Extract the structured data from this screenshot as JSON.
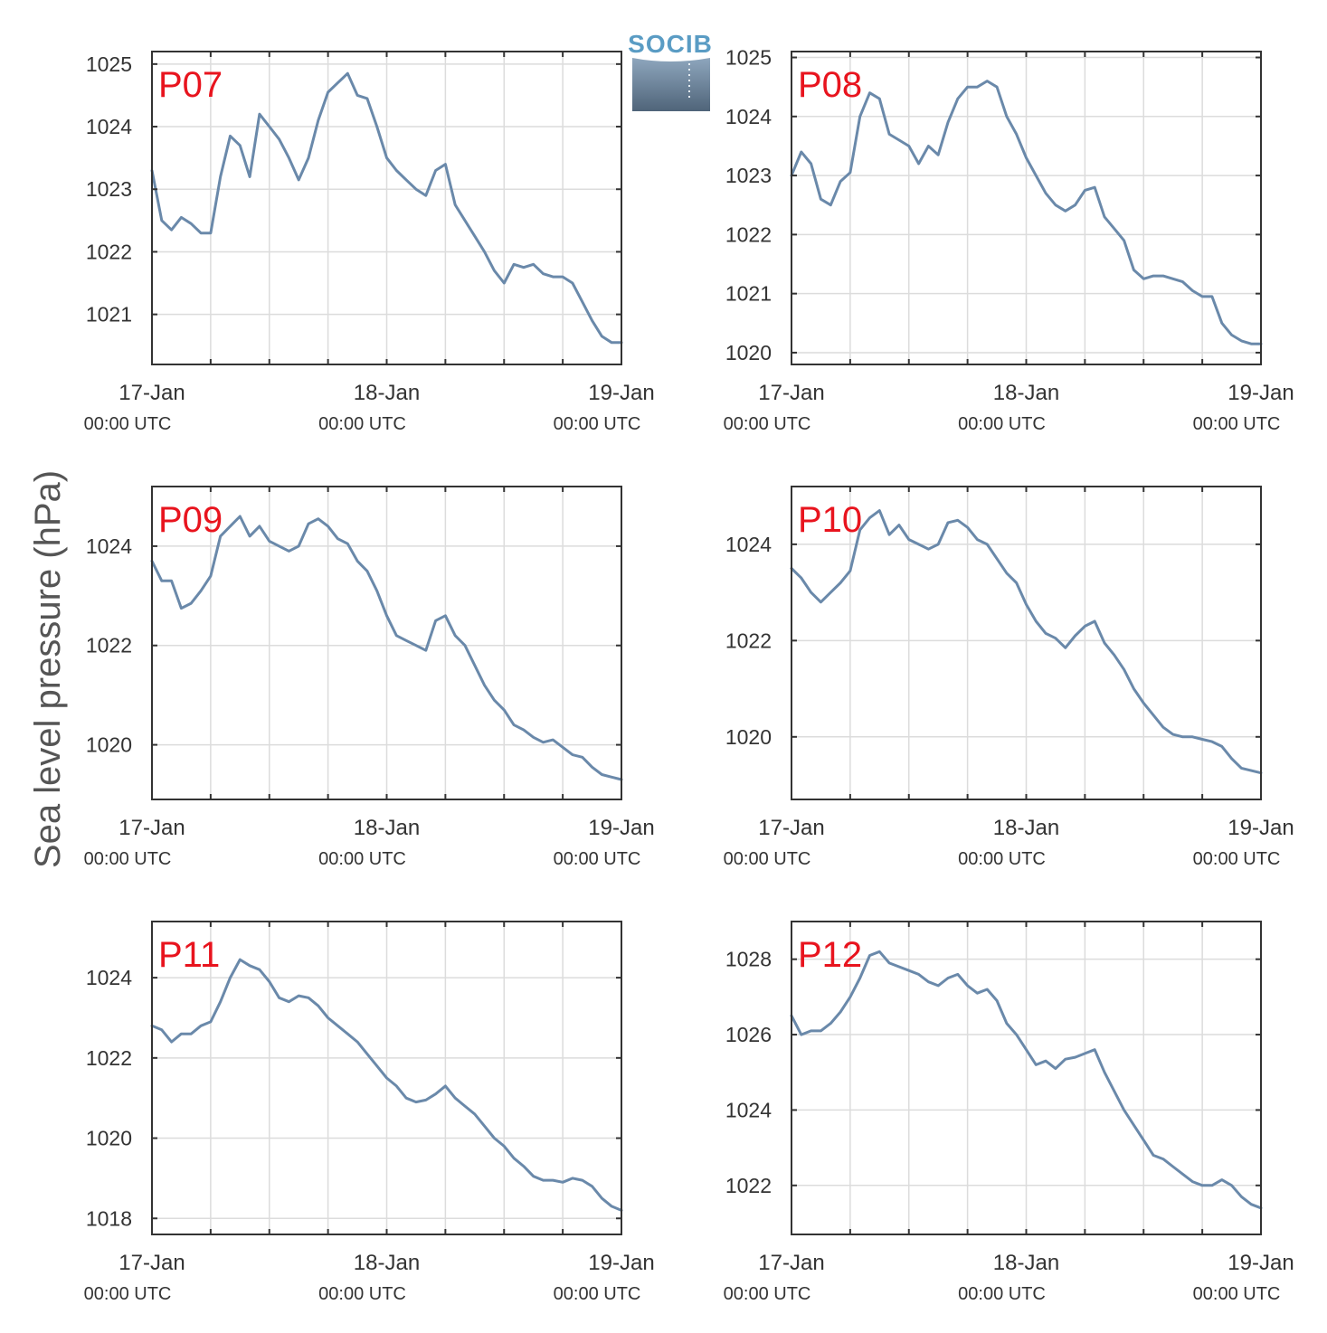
{
  "logo": {
    "text": "SOCIB"
  },
  "figure": {
    "ylabel": "Sea level pressure (hPa)",
    "line_color": "#6a89aa"
  },
  "x_ticks": [
    {
      "pos": 0,
      "date": "17-Jan",
      "time": "00:00 UTC"
    },
    {
      "pos": 24,
      "date": "18-Jan",
      "time": "00:00 UTC"
    },
    {
      "pos": 48,
      "date": "19-Jan",
      "time": "00:00 UTC"
    }
  ],
  "chart_data": [
    {
      "type": "line",
      "label": "P07",
      "x_unit": "hours since 17-Jan 00:00 UTC",
      "xlim": [
        0,
        48
      ],
      "ylim": [
        1020.2,
        1025.2
      ],
      "yticks": [
        1021,
        1022,
        1023,
        1024,
        1025
      ],
      "x": [
        0,
        1,
        2,
        3,
        4,
        5,
        6,
        7,
        8,
        9,
        10,
        11,
        12,
        13,
        14,
        15,
        16,
        17,
        18,
        19,
        20,
        21,
        22,
        23,
        24,
        25,
        26,
        27,
        28,
        29,
        30,
        31,
        32,
        33,
        34,
        35,
        36,
        37,
        38,
        39,
        40,
        41,
        42,
        43,
        44,
        45,
        46,
        47,
        48
      ],
      "y": [
        1023.3,
        1022.5,
        1022.35,
        1022.55,
        1022.45,
        1022.3,
        1022.3,
        1023.2,
        1023.85,
        1023.7,
        1023.2,
        1024.2,
        1024.0,
        1023.8,
        1023.5,
        1023.15,
        1023.5,
        1024.1,
        1024.55,
        1024.7,
        1024.85,
        1024.5,
        1024.45,
        1024.0,
        1023.5,
        1023.3,
        1023.15,
        1023.0,
        1022.9,
        1023.3,
        1023.4,
        1022.75,
        1022.5,
        1022.25,
        1022.0,
        1021.7,
        1021.5,
        1021.8,
        1021.75,
        1021.8,
        1021.65,
        1021.6,
        1021.6,
        1021.5,
        1021.2,
        1020.9,
        1020.65,
        1020.55,
        1020.55
      ]
    },
    {
      "type": "line",
      "label": "P08",
      "x_unit": "hours since 17-Jan 00:00 UTC",
      "xlim": [
        0,
        48
      ],
      "ylim": [
        1019.8,
        1025.1
      ],
      "yticks": [
        1020,
        1021,
        1022,
        1023,
        1024,
        1025
      ],
      "x": [
        0,
        1,
        2,
        3,
        4,
        5,
        6,
        7,
        8,
        9,
        10,
        11,
        12,
        13,
        14,
        15,
        16,
        17,
        18,
        19,
        20,
        21,
        22,
        23,
        24,
        25,
        26,
        27,
        28,
        29,
        30,
        31,
        32,
        33,
        34,
        35,
        36,
        37,
        38,
        39,
        40,
        41,
        42,
        43,
        44,
        45,
        46,
        47,
        48
      ],
      "y": [
        1023.0,
        1023.4,
        1023.2,
        1022.6,
        1022.5,
        1022.9,
        1023.05,
        1024.0,
        1024.4,
        1024.3,
        1023.7,
        1023.6,
        1023.5,
        1023.2,
        1023.5,
        1023.35,
        1023.9,
        1024.3,
        1024.5,
        1024.5,
        1024.6,
        1024.5,
        1024.0,
        1023.7,
        1023.3,
        1023.0,
        1022.7,
        1022.5,
        1022.4,
        1022.5,
        1022.75,
        1022.8,
        1022.3,
        1022.1,
        1021.9,
        1021.4,
        1021.25,
        1021.3,
        1021.3,
        1021.25,
        1021.2,
        1021.05,
        1020.95,
        1020.95,
        1020.5,
        1020.3,
        1020.2,
        1020.15,
        1020.15
      ]
    },
    {
      "type": "line",
      "label": "P09",
      "x_unit": "hours since 17-Jan 00:00 UTC",
      "xlim": [
        0,
        48
      ],
      "ylim": [
        1018.9,
        1025.2
      ],
      "yticks": [
        1020,
        1022,
        1024
      ],
      "x": [
        0,
        1,
        2,
        3,
        4,
        5,
        6,
        7,
        8,
        9,
        10,
        11,
        12,
        13,
        14,
        15,
        16,
        17,
        18,
        19,
        20,
        21,
        22,
        23,
        24,
        25,
        26,
        27,
        28,
        29,
        30,
        31,
        32,
        33,
        34,
        35,
        36,
        37,
        38,
        39,
        40,
        41,
        42,
        43,
        44,
        45,
        46,
        47,
        48
      ],
      "y": [
        1023.7,
        1023.3,
        1023.3,
        1022.75,
        1022.85,
        1023.1,
        1023.4,
        1024.2,
        1024.4,
        1024.6,
        1024.2,
        1024.4,
        1024.1,
        1024.0,
        1023.9,
        1024.0,
        1024.45,
        1024.55,
        1024.4,
        1024.15,
        1024.05,
        1023.7,
        1023.5,
        1023.1,
        1022.6,
        1022.2,
        1022.1,
        1022.0,
        1021.9,
        1022.5,
        1022.6,
        1022.2,
        1022.0,
        1021.6,
        1021.2,
        1020.9,
        1020.7,
        1020.4,
        1020.3,
        1020.15,
        1020.05,
        1020.1,
        1019.95,
        1019.8,
        1019.75,
        1019.55,
        1019.4,
        1019.35,
        1019.3
      ]
    },
    {
      "type": "line",
      "label": "P10",
      "x_unit": "hours since 17-Jan 00:00 UTC",
      "xlim": [
        0,
        48
      ],
      "ylim": [
        1018.7,
        1025.2
      ],
      "yticks": [
        1020,
        1022,
        1024
      ],
      "x": [
        0,
        1,
        2,
        3,
        4,
        5,
        6,
        7,
        8,
        9,
        10,
        11,
        12,
        13,
        14,
        15,
        16,
        17,
        18,
        19,
        20,
        21,
        22,
        23,
        24,
        25,
        26,
        27,
        28,
        29,
        30,
        31,
        32,
        33,
        34,
        35,
        36,
        37,
        38,
        39,
        40,
        41,
        42,
        43,
        44,
        45,
        46,
        47,
        48
      ],
      "y": [
        1023.5,
        1023.3,
        1023.0,
        1022.8,
        1023.0,
        1023.2,
        1023.45,
        1024.3,
        1024.55,
        1024.7,
        1024.2,
        1024.4,
        1024.1,
        1024.0,
        1023.9,
        1024.0,
        1024.45,
        1024.5,
        1024.35,
        1024.1,
        1024.0,
        1023.7,
        1023.4,
        1023.2,
        1022.75,
        1022.4,
        1022.15,
        1022.05,
        1021.85,
        1022.1,
        1022.3,
        1022.4,
        1021.95,
        1021.7,
        1021.4,
        1021.0,
        1020.7,
        1020.45,
        1020.2,
        1020.05,
        1020.0,
        1020.0,
        1019.95,
        1019.9,
        1019.8,
        1019.55,
        1019.35,
        1019.3,
        1019.25
      ]
    },
    {
      "type": "line",
      "label": "P11",
      "x_unit": "hours since 17-Jan 00:00 UTC",
      "xlim": [
        0,
        48
      ],
      "ylim": [
        1017.6,
        1025.4
      ],
      "yticks": [
        1018,
        1020,
        1022,
        1024
      ],
      "x": [
        0,
        1,
        2,
        3,
        4,
        5,
        6,
        7,
        8,
        9,
        10,
        11,
        12,
        13,
        14,
        15,
        16,
        17,
        18,
        19,
        20,
        21,
        22,
        23,
        24,
        25,
        26,
        27,
        28,
        29,
        30,
        31,
        32,
        33,
        34,
        35,
        36,
        37,
        38,
        39,
        40,
        41,
        42,
        43,
        44,
        45,
        46,
        47,
        48
      ],
      "y": [
        1022.8,
        1022.7,
        1022.4,
        1022.6,
        1022.6,
        1022.8,
        1022.9,
        1023.4,
        1024.0,
        1024.45,
        1024.3,
        1024.2,
        1023.9,
        1023.5,
        1023.4,
        1023.55,
        1023.5,
        1023.3,
        1023.0,
        1022.8,
        1022.6,
        1022.4,
        1022.1,
        1021.8,
        1021.5,
        1021.3,
        1021.0,
        1020.9,
        1020.95,
        1021.1,
        1021.3,
        1021.0,
        1020.8,
        1020.6,
        1020.3,
        1020.0,
        1019.8,
        1019.5,
        1019.3,
        1019.05,
        1018.95,
        1018.95,
        1018.9,
        1019.0,
        1018.95,
        1018.8,
        1018.5,
        1018.3,
        1018.2
      ]
    },
    {
      "type": "line",
      "label": "P12",
      "x_unit": "hours since 17-Jan 00:00 UTC",
      "xlim": [
        0,
        48
      ],
      "ylim": [
        1020.7,
        1029.0
      ],
      "yticks": [
        1022,
        1024,
        1026,
        1028
      ],
      "x": [
        0,
        1,
        2,
        3,
        4,
        5,
        6,
        7,
        8,
        9,
        10,
        11,
        12,
        13,
        14,
        15,
        16,
        17,
        18,
        19,
        20,
        21,
        22,
        23,
        24,
        25,
        26,
        27,
        28,
        29,
        30,
        31,
        32,
        33,
        34,
        35,
        36,
        37,
        38,
        39,
        40,
        41,
        42,
        43,
        44,
        45,
        46,
        47,
        48
      ],
      "y": [
        1026.5,
        1026.0,
        1026.1,
        1026.1,
        1026.3,
        1026.6,
        1027.0,
        1027.5,
        1028.1,
        1028.2,
        1027.9,
        1027.8,
        1027.7,
        1027.6,
        1027.4,
        1027.3,
        1027.5,
        1027.6,
        1027.3,
        1027.1,
        1027.2,
        1026.9,
        1026.3,
        1026.0,
        1025.6,
        1025.2,
        1025.3,
        1025.1,
        1025.35,
        1025.4,
        1025.5,
        1025.6,
        1025.0,
        1024.5,
        1024.0,
        1023.6,
        1023.2,
        1022.8,
        1022.7,
        1022.5,
        1022.3,
        1022.1,
        1022.0,
        1022.0,
        1022.15,
        1022.0,
        1021.7,
        1021.5,
        1021.4
      ]
    }
  ]
}
